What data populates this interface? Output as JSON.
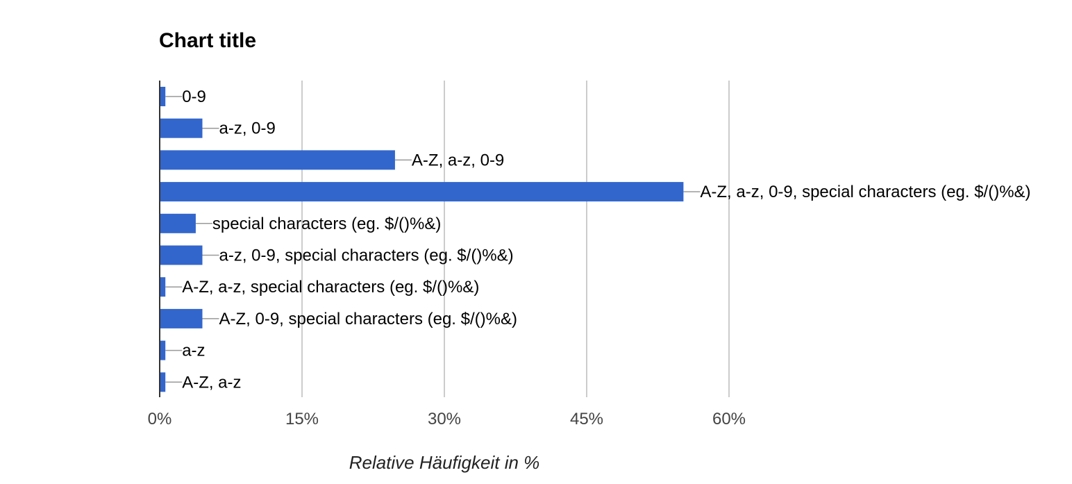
{
  "chart_data": {
    "type": "bar",
    "orientation": "horizontal",
    "title": "Chart title",
    "xlabel": "Relative Häufigkeit in %",
    "ylabel": "",
    "xlim": [
      0,
      60
    ],
    "x_ticks": [
      0,
      15,
      30,
      45,
      60
    ],
    "x_tick_labels": [
      "0%",
      "15%",
      "30%",
      "45%",
      "60%"
    ],
    "grid": true,
    "legend": "none",
    "bar_color": "#3366cc",
    "categories": [
      "0-9",
      "a-z, 0-9",
      "A-Z, a-z, 0-9",
      "A-Z, a-z, 0-9, special characters (eg. $/()%&)",
      "special characters (eg. $/()%&)",
      "a-z, 0-9, special characters (eg. $/()%&)",
      "A-Z, a-z, special characters (eg. $/()%&)",
      "A-Z, 0-9, special characters (eg. $/()%&)",
      "a-z",
      "A-Z, a-z"
    ],
    "values": [
      0.6,
      4.5,
      24.8,
      55.2,
      3.8,
      4.5,
      0.6,
      4.5,
      0.6,
      0.6
    ]
  }
}
